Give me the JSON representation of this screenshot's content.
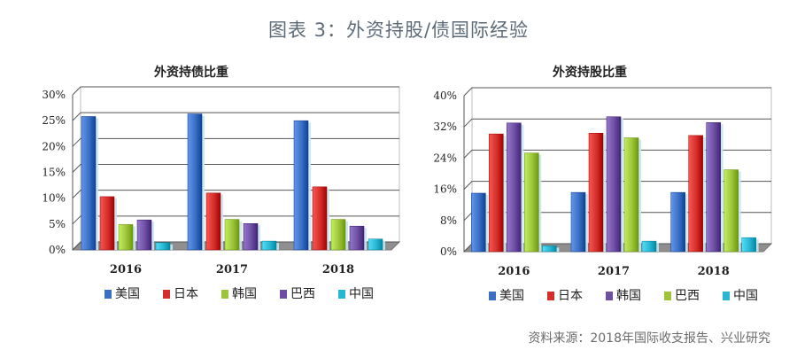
{
  "page_title": "图表 3：外资持股/债国际经验",
  "source_note": "资料来源：2018年国际收支报告、兴业研究",
  "colors": {
    "美国": "#3a6fc4",
    "日本": "#d32e2a",
    "韩国_left": "#9cc53a",
    "巴西_left": "#6e4fa3",
    "韩国_right": "#6e4fa3",
    "巴西_right": "#9cc53a",
    "中国": "#29b6d1"
  },
  "chart_data": [
    {
      "type": "bar",
      "title": "外资持债比重",
      "categories": [
        "2016",
        "2017",
        "2018"
      ],
      "yticks": [
        "0%",
        "5%",
        "10%",
        "15%",
        "20%",
        "25%",
        "30%"
      ],
      "ylim": [
        0,
        30
      ],
      "series": [
        {
          "name": "美国",
          "values": [
            25.8,
            26.3,
            25.0
          ]
        },
        {
          "name": "日本",
          "values": [
            10.3,
            11.0,
            12.2
          ]
        },
        {
          "name": "韩国",
          "values": [
            4.9,
            5.9,
            5.9
          ]
        },
        {
          "name": "巴西",
          "values": [
            5.8,
            5.1,
            4.6
          ]
        },
        {
          "name": "中国",
          "values": [
            1.4,
            1.7,
            2.1
          ]
        }
      ],
      "legend": [
        "美国",
        "日本",
        "韩国",
        "巴西",
        "中国"
      ],
      "legend_position": "bottom"
    },
    {
      "type": "bar",
      "title": "外资持股比重",
      "categories": [
        "2016",
        "2017",
        "2018"
      ],
      "yticks": [
        "0%",
        "8%",
        "16%",
        "24%",
        "32%",
        "40%"
      ],
      "ylim": [
        0,
        40
      ],
      "series": [
        {
          "name": "美国",
          "values": [
            15.0,
            15.2,
            15.2
          ]
        },
        {
          "name": "日本",
          "values": [
            30.2,
            30.4,
            29.8
          ]
        },
        {
          "name": "韩国",
          "values": [
            33.0,
            34.6,
            33.1
          ]
        },
        {
          "name": "巴西",
          "values": [
            25.3,
            29.2,
            21.0
          ]
        },
        {
          "name": "中国",
          "values": [
            1.5,
            2.7,
            3.6
          ]
        }
      ],
      "legend": [
        "美国",
        "日本",
        "韩国",
        "巴西",
        "中国"
      ],
      "legend_position": "bottom"
    }
  ]
}
